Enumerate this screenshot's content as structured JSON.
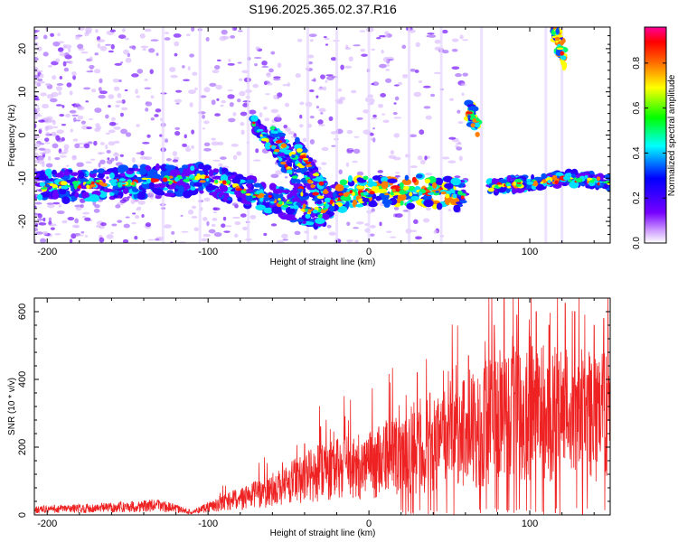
{
  "chart_data": [
    {
      "type": "heatmap",
      "title": "S196.2025.365.02.37.R16",
      "xlabel": "Height of straight line (km)",
      "ylabel": "Frequency (Hz)",
      "xlim": [
        -208,
        150
      ],
      "ylim": [
        -25,
        25
      ],
      "xticks": [
        -200,
        -100,
        0,
        100
      ],
      "xtick_labels": [
        "-200",
        "-100",
        "0",
        "100"
      ],
      "yticks": [
        -20,
        -10,
        0,
        10,
        20
      ],
      "ytick_labels": [
        "-20",
        "-10",
        "0",
        "10",
        "20"
      ],
      "colorbar": {
        "label": "Normalized spectral amplitude",
        "range": [
          0,
          0.96
        ],
        "ticks": [
          0.0,
          0.2,
          0.4,
          0.6,
          0.8
        ],
        "tick_labels": [
          "0.0",
          "0.2",
          "0.4",
          "0.6",
          "0.8"
        ],
        "colormap": [
          "#ffffff",
          "#6a00ff",
          "#0000ff",
          "#00ffff",
          "#00ff00",
          "#ffff00",
          "#ff8000",
          "#ff0000",
          "#ff00aa"
        ]
      },
      "features": [
        {
          "name": "main-band",
          "x": [
            -205,
            -150,
            -100,
            -60,
            -30,
            -20,
            0,
            40,
            60
          ],
          "y": [
            -12,
            -11,
            -10,
            -15,
            -18,
            -14,
            -13,
            -13,
            -14
          ]
        },
        {
          "name": "diagonal-streak-1",
          "x": [
            -72,
            -55,
            -40
          ],
          "y": [
            3,
            -5,
            -14
          ]
        },
        {
          "name": "diagonal-streak-2",
          "x": [
            -60,
            -45,
            -30
          ],
          "y": [
            1,
            -6,
            -15
          ]
        },
        {
          "name": "diagonal-streak-3",
          "x": [
            -45,
            -35,
            -22
          ],
          "y": [
            -2,
            -8,
            -16
          ]
        },
        {
          "name": "blob-upper",
          "x": [
            62,
            66,
            68
          ],
          "y": [
            5,
            4,
            2
          ]
        },
        {
          "name": "blob-high",
          "x": [
            115,
            118,
            122
          ],
          "y": [
            24,
            21,
            17
          ]
        },
        {
          "name": "right-band",
          "x": [
            75,
            100,
            125,
            150
          ],
          "y": [
            -12,
            -11,
            -10,
            -11
          ]
        }
      ]
    },
    {
      "type": "line",
      "xlabel": "Height of straight line (km)",
      "ylabel": "SNR (10 * v/v)",
      "xlim": [
        -208,
        150
      ],
      "ylim": [
        0,
        640
      ],
      "xticks": [
        -200,
        -100,
        0,
        100
      ],
      "xtick_labels": [
        "-200",
        "-100",
        "0",
        "100"
      ],
      "yticks": [
        0,
        200,
        400,
        600
      ],
      "ytick_labels": [
        "0",
        "200",
        "400",
        "600"
      ],
      "line_color": "#ee2222",
      "envelope": {
        "x": [
          -208,
          -170,
          -130,
          -110,
          -100,
          -80,
          -60,
          -40,
          -20,
          0,
          20,
          40,
          60,
          80,
          100,
          120,
          150
        ],
        "y": [
          20,
          25,
          35,
          10,
          30,
          60,
          90,
          140,
          170,
          180,
          230,
          260,
          300,
          360,
          380,
          370,
          360
        ]
      },
      "peaks": {
        "x": [
          -40,
          -30,
          -15,
          15,
          30,
          38,
          52,
          62,
          78,
          84,
          92,
          104,
          112,
          122,
          128,
          140,
          146
        ],
        "y": [
          210,
          260,
          290,
          260,
          420,
          360,
          430,
          470,
          560,
          640,
          590,
          600,
          560,
          625,
          600,
          560,
          580
        ]
      }
    }
  ]
}
